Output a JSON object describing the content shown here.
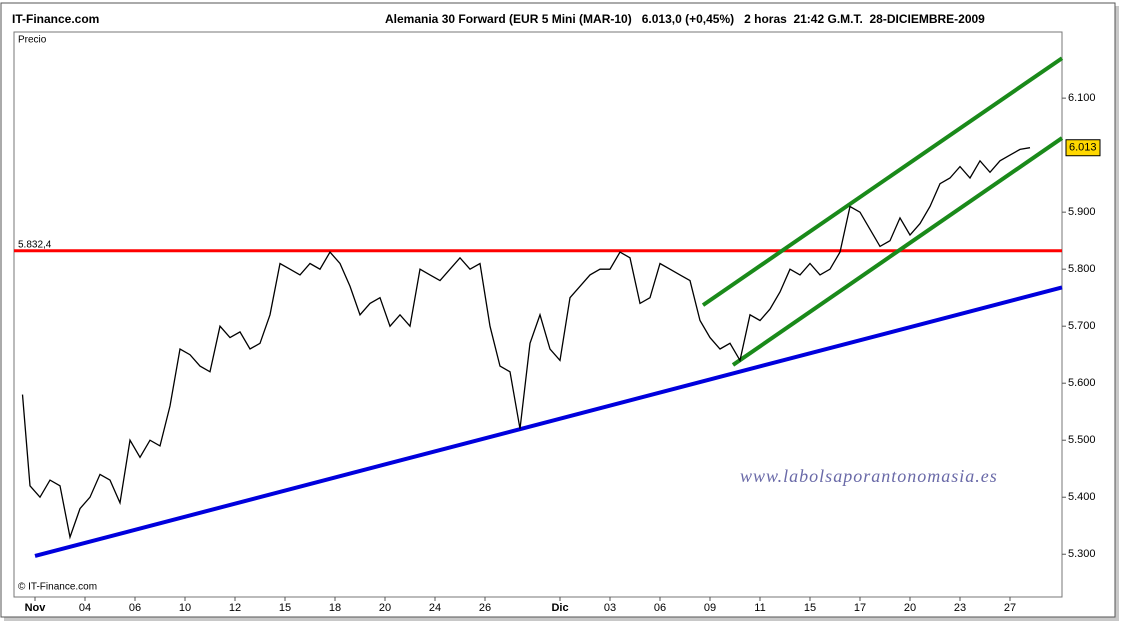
{
  "chart_data": {
    "type": "line",
    "site": "IT-Finance.com",
    "title": "Alemania 30 Forward (EUR 5 Mini (MAR-10)   6.013,0 (+0,45%)   2 horas  21:42 G.M.T.  28-DICIEMBRE-2009",
    "panel_label": "Precio",
    "copyright": "© IT-Finance.com",
    "watermark": "www.labolsaporantonomasia.es",
    "x": [
      -0.5,
      -0.2,
      0.2,
      0.6,
      1.0,
      1.4,
      1.8,
      2.2,
      2.6,
      3.0,
      3.4,
      3.8,
      4.2,
      4.6,
      5.0,
      5.4,
      5.8,
      6.2,
      6.6,
      7.0,
      7.4,
      7.8,
      8.2,
      8.6,
      9.0,
      9.4,
      9.8,
      10.2,
      10.6,
      11.0,
      11.4,
      11.8,
      12.2,
      12.6,
      13.0,
      13.4,
      13.8,
      14.2,
      14.6,
      15.0,
      15.4,
      15.8,
      16.2,
      16.6,
      17.0,
      17.4,
      17.8,
      18.2,
      18.6,
      19.0,
      19.4,
      19.8,
      20.2,
      20.6,
      21.0,
      21.4,
      21.8,
      22.2,
      22.6,
      23.0,
      23.4,
      23.8,
      24.2,
      24.6,
      25.0,
      25.4,
      25.8,
      26.2,
      26.6,
      27.0,
      27.4,
      27.8,
      28.2,
      28.6,
      29.0,
      29.4,
      29.8,
      30.2,
      30.6,
      31.0,
      31.4,
      31.8,
      32.2,
      32.6,
      33.0,
      33.4,
      33.8,
      34.2,
      34.6,
      35.0,
      35.4,
      35.8,
      36.2,
      36.6,
      37.0,
      37.4,
      37.8,
      38.2,
      38.6,
      39.0,
      39.4,
      39.8
    ],
    "series": [
      {
        "color": "#000000",
        "values": [
          5.58,
          5.42,
          5.4,
          5.43,
          5.42,
          5.33,
          5.38,
          5.4,
          5.44,
          5.43,
          5.39,
          5.5,
          5.47,
          5.5,
          5.49,
          5.56,
          5.66,
          5.65,
          5.63,
          5.62,
          5.7,
          5.68,
          5.69,
          5.66,
          5.67,
          5.72,
          5.81,
          5.8,
          5.79,
          5.81,
          5.8,
          5.83,
          5.81,
          5.77,
          5.72,
          5.74,
          5.75,
          5.7,
          5.72,
          5.7,
          5.8,
          5.79,
          5.78,
          5.8,
          5.82,
          5.8,
          5.81,
          5.7,
          5.63,
          5.62,
          5.52,
          5.67,
          5.72,
          5.66,
          5.64,
          5.75,
          5.77,
          5.79,
          5.8,
          5.8,
          5.83,
          5.82,
          5.74,
          5.75,
          5.81,
          5.8,
          5.79,
          5.78,
          5.71,
          5.68,
          5.66,
          5.67,
          5.64,
          5.72,
          5.71,
          5.73,
          5.76,
          5.8,
          5.79,
          5.81,
          5.79,
          5.8,
          5.83,
          5.91,
          5.9,
          5.87,
          5.84,
          5.85,
          5.89,
          5.86,
          5.88,
          5.91,
          5.95,
          5.96,
          5.98,
          5.96,
          5.99,
          5.97,
          5.99,
          6.0,
          6.01,
          6.013
        ]
      }
    ],
    "trend_lines": [
      {
        "color": "#0000dd",
        "x": [
          0,
          41.08
        ],
        "y": [
          5.297,
          5.768
        ]
      },
      {
        "color": "#1a8a1a",
        "x": [
          26.72,
          41.08
        ],
        "y": [
          5.737,
          6.17
        ]
      },
      {
        "color": "#1a8a1a",
        "x": [
          27.92,
          41.08
        ],
        "y": [
          5.632,
          6.03
        ]
      }
    ],
    "hline": {
      "value": 5.8324,
      "label": "5.832,4",
      "color": "#ff0000"
    },
    "last_value": {
      "value": 6.013,
      "label": "6.013"
    },
    "xlim": [
      -0.84,
      41.08
    ],
    "ylim": [
      5.225,
      6.216
    ],
    "xticks": [
      {
        "value": 0,
        "label": "Nov"
      },
      {
        "value": 2,
        "label": "04"
      },
      {
        "value": 4,
        "label": "06"
      },
      {
        "value": 6,
        "label": "10"
      },
      {
        "value": 8,
        "label": "12"
      },
      {
        "value": 10,
        "label": "15"
      },
      {
        "value": 12,
        "label": "18"
      },
      {
        "value": 14,
        "label": "20"
      },
      {
        "value": 16,
        "label": "24"
      },
      {
        "value": 18,
        "label": "26"
      },
      {
        "value": 21,
        "label": "Dic"
      },
      {
        "value": 23,
        "label": "03"
      },
      {
        "value": 25,
        "label": "06"
      },
      {
        "value": 27,
        "label": "09"
      },
      {
        "value": 29,
        "label": "11"
      },
      {
        "value": 31,
        "label": "15"
      },
      {
        "value": 33,
        "label": "17"
      },
      {
        "value": 35,
        "label": "20"
      },
      {
        "value": 37,
        "label": "23"
      },
      {
        "value": 39,
        "label": "27"
      }
    ],
    "yticks": [
      {
        "value": 5.3,
        "label": "5.300"
      },
      {
        "value": 5.4,
        "label": "5.400"
      },
      {
        "value": 5.5,
        "label": "5.500"
      },
      {
        "value": 5.6,
        "label": "5.600"
      },
      {
        "value": 5.7,
        "label": "5.700"
      },
      {
        "value": 5.8,
        "label": "5.800"
      },
      {
        "value": 5.9,
        "label": "5.900"
      },
      {
        "value": 6.1,
        "label": "6.100"
      }
    ]
  }
}
